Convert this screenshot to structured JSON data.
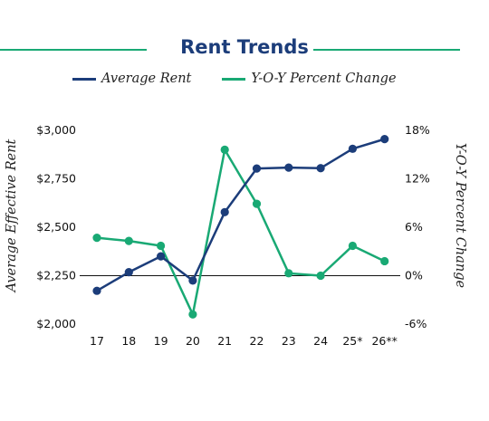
{
  "chart_data": {
    "type": "line",
    "title": "Rent Trends",
    "categories": [
      "17",
      "18",
      "19",
      "20",
      "21",
      "22",
      "23",
      "24",
      "25*",
      "26**"
    ],
    "series": [
      {
        "name": "Average Rent",
        "axis": "left",
        "color": "#1c3d7a",
        "values": [
          2172,
          2268,
          2350,
          2225,
          2578,
          2803,
          2808,
          2805,
          2905,
          2955
        ]
      },
      {
        "name": "Y-O-Y Percent Change",
        "axis": "right",
        "color": "#19a974",
        "values": [
          4.7,
          4.3,
          3.7,
          -4.8,
          15.6,
          8.9,
          0.3,
          0.0,
          3.7,
          1.8
        ]
      }
    ],
    "ylabel_left": "Average Effective Rent",
    "ylabel_right": "Y-O-Y Percent Change",
    "yticks_left": [
      "$2,000",
      "$2,250",
      "$2,500",
      "$2,750",
      "$3,000"
    ],
    "yticks_right": [
      "-6%",
      "0%",
      "6%",
      "12%",
      "18%"
    ],
    "ylim_left": [
      2000,
      3000
    ],
    "ylim_right": [
      -6,
      18
    ],
    "reference_line": {
      "axis": "right",
      "value": 0
    },
    "legend_position": "top",
    "grid": false
  }
}
